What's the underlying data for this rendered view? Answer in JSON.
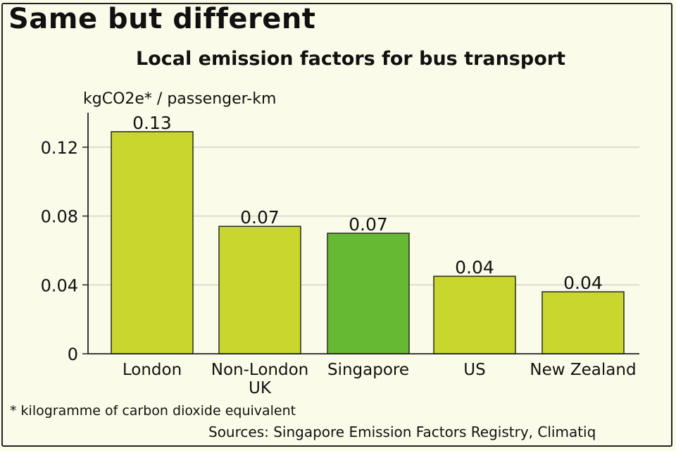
{
  "page": {
    "title": "Same but different",
    "footnote": "* kilogramme of carbon dioxide equivalent",
    "sources": "Sources: Singapore Emission Factors Registry, Climatiq"
  },
  "chart_data": {
    "type": "bar",
    "title": "Local emission factors for bus transport",
    "ylabel": "kgCO2e* / passenger-km",
    "xlabel": "",
    "categories": [
      "London",
      "Non-London UK",
      "Singapore",
      "US",
      "New Zealand"
    ],
    "category_lines": [
      [
        "London"
      ],
      [
        "Non-London",
        "UK"
      ],
      [
        "Singapore"
      ],
      [
        "US"
      ],
      [
        "New Zealand"
      ]
    ],
    "values": [
      0.129,
      0.074,
      0.07,
      0.045,
      0.036
    ],
    "data_labels": [
      "0.13",
      "0.07",
      "0.07",
      "0.04",
      "0.04"
    ],
    "bar_colors": [
      "#c8d62e",
      "#c8d62e",
      "#66b933",
      "#c8d62e",
      "#c8d62e"
    ],
    "ylim": [
      0,
      0.14
    ],
    "yticks": [
      0,
      0.04,
      0.08,
      0.12
    ],
    "ytick_labels": [
      "0",
      "0.04",
      "0.08",
      "0.12"
    ],
    "grid": true,
    "gridline_color": "#d4d4cc",
    "legend": "none"
  }
}
